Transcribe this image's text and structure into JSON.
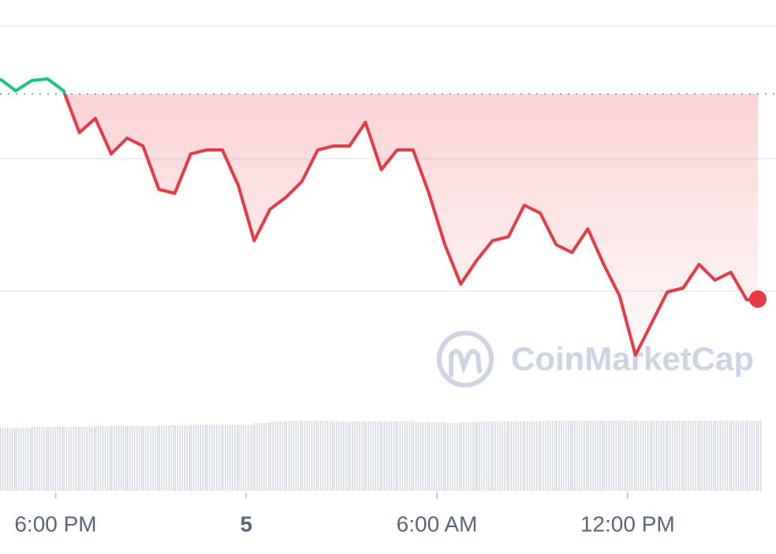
{
  "chart_data": {
    "type": "line",
    "watermark": "CoinMarketCap",
    "x": [
      16.25,
      16.75,
      17.25,
      17.75,
      18.25,
      18.75,
      19.25,
      19.75,
      20.25,
      20.75,
      21.25,
      21.75,
      22.25,
      22.75,
      23.25,
      23.75,
      24.25,
      24.75,
      25.25,
      25.75,
      26.25,
      26.75,
      27.25,
      27.75,
      28.25,
      28.75,
      29.25,
      29.75,
      30.25,
      30.75,
      31.25,
      31.75,
      32.25,
      32.75,
      33.25,
      33.75,
      34.25,
      34.75,
      35.25,
      35.75,
      36.25,
      36.75,
      37.25,
      37.75,
      38.25,
      38.75,
      39.25,
      39.75,
      40.1
    ],
    "series": [
      {
        "color": "#ea3943",
        "color_up": "#16c784",
        "values": [
          400,
          385,
          398,
          400,
          385,
          332,
          350,
          305,
          325,
          315,
          260,
          255,
          305,
          310,
          310,
          265,
          195,
          235,
          250,
          270,
          310,
          315,
          315,
          345,
          285,
          310,
          310,
          255,
          190,
          140,
          170,
          195,
          200,
          240,
          230,
          190,
          180,
          210,
          165,
          125,
          50,
          90,
          130,
          135,
          165,
          145,
          155,
          120,
          121
        ],
        "volume": [
          80,
          80,
          81,
          81,
          81,
          81,
          82,
          82,
          82,
          82,
          83,
          83,
          84,
          84,
          84,
          84,
          86,
          88,
          89,
          89,
          89,
          88,
          88,
          88,
          88,
          88,
          87,
          87,
          86,
          87,
          88,
          88,
          88,
          88,
          89,
          89,
          89,
          89,
          89,
          89,
          89,
          89,
          89,
          89,
          89,
          89,
          89,
          89,
          89
        ]
      }
    ],
    "baseline": 381,
    "xlim": [
      16.25,
      40.25
    ],
    "ylim": [
      0,
      500
    ],
    "gridlines": [
      467,
      299,
      131
    ],
    "xticks": [
      {
        "value": 18,
        "label": "6:00 PM"
      },
      {
        "value": 24,
        "label": "5"
      },
      {
        "value": 30,
        "label": "6:00 AM"
      },
      {
        "value": 36,
        "label": "12:00 PM"
      }
    ]
  }
}
